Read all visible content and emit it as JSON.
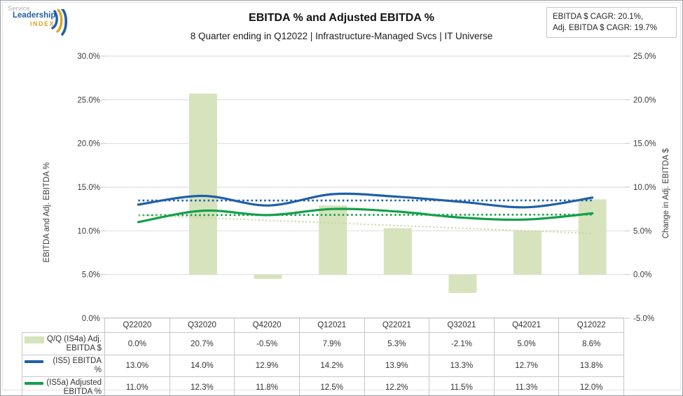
{
  "header": {
    "logo": {
      "service": "Service",
      "leadership": "Leadership",
      "index": "INDEX"
    },
    "title": "EBITDA % and Adjusted EBITDA %",
    "subtitle": "8 Quarter ending in Q12022 | Infrastructure-Managed Svcs | IT Universe",
    "cagr_box": {
      "line1": "EBITDA $ CAGR: 20.1%,",
      "line2": "Adj. EBITDA $ CAGR: 19.7%"
    }
  },
  "chart_data": {
    "type": "combo-bar-line",
    "categories": [
      "Q22020",
      "Q32020",
      "Q42020",
      "Q12021",
      "Q22021",
      "Q32021",
      "Q42021",
      "Q12022"
    ],
    "series": [
      {
        "name": "Q/Q (IS4a) Adj. EBITDA $",
        "type": "bar",
        "axis": "right",
        "color": "#d6e3bc",
        "values": [
          0.0,
          20.7,
          -0.5,
          7.9,
          5.3,
          -2.1,
          5.0,
          8.6
        ]
      },
      {
        "name": "(IS5) EBITDA %",
        "type": "line",
        "axis": "left",
        "color": "#1f5fa8",
        "values": [
          13.0,
          14.0,
          12.9,
          14.2,
          13.9,
          13.3,
          12.7,
          13.8
        ]
      },
      {
        "name": "(IS5a) Adjusted EBITDA %",
        "type": "line",
        "axis": "left",
        "color": "#13a049",
        "values": [
          11.0,
          12.3,
          11.8,
          12.5,
          12.2,
          11.5,
          11.3,
          12.0
        ]
      }
    ],
    "trendlines": [
      {
        "for": "(IS5) EBITDA %",
        "axis": "left",
        "style": "dotted",
        "color": "#1f5fa8",
        "start": 13.47,
        "end": 13.48
      },
      {
        "for": "(IS5a) Adjusted EBITDA %",
        "axis": "left",
        "style": "dotted",
        "color": "#13a049",
        "start": 11.79,
        "end": 11.86
      },
      {
        "for": "Q/Q (IS4a) Adj. EBITDA $",
        "axis": "right",
        "style": "dotted",
        "color": "#c5d79c",
        "start": 6.8,
        "end": 4.7
      }
    ],
    "left_axis": {
      "title": "EBITDA and Adj. EBITDA %",
      "min": 0,
      "max": 30,
      "step": 5,
      "ticks": [
        "30.0%",
        "25.0%",
        "20.0%",
        "15.0%",
        "10.0%",
        "5.0%",
        "0.0%"
      ]
    },
    "right_axis": {
      "title": "Change in Adj. EBITDA $",
      "min": -5,
      "max": 25,
      "step": 5,
      "ticks": [
        "25.0%",
        "20.0%",
        "15.0%",
        "10.0%",
        "5.0%",
        "0.0%",
        "-5.0%"
      ]
    },
    "grid": true,
    "legend_position": "table-left-column"
  },
  "table": {
    "columns": [
      "Q22020",
      "Q32020",
      "Q42020",
      "Q12021",
      "Q22021",
      "Q32021",
      "Q42021",
      "Q12022"
    ],
    "rows": [
      {
        "label_lines": [
          "Q/Q (IS4a) Adj.",
          "EBITDA $"
        ],
        "swatch": "bar",
        "color": "#d6e3bc",
        "values": [
          "0.0%",
          "20.7%",
          "-0.5%",
          "7.9%",
          "5.3%",
          "-2.1%",
          "5.0%",
          "8.6%"
        ]
      },
      {
        "label_lines": [
          "(IS5) EBITDA %"
        ],
        "swatch": "line",
        "color": "#1f5fa8",
        "values": [
          "13.0%",
          "14.0%",
          "12.9%",
          "14.2%",
          "13.9%",
          "13.3%",
          "12.7%",
          "13.8%"
        ]
      },
      {
        "label_lines": [
          "(IS5a) Adjusted",
          "EBITDA %"
        ],
        "swatch": "line",
        "color": "#13a049",
        "values": [
          "11.0%",
          "12.3%",
          "11.8%",
          "12.5%",
          "12.2%",
          "11.5%",
          "11.3%",
          "12.0%"
        ]
      }
    ]
  }
}
